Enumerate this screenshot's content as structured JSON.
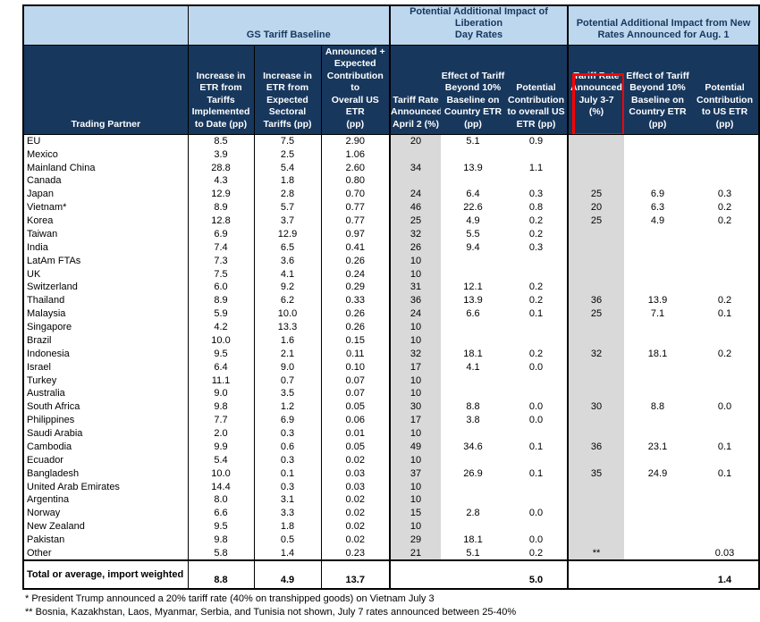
{
  "colors": {
    "header_navy": "#17375D",
    "band_blue": "#BDD7EE",
    "shaded_gray": "#D9D9D9",
    "highlight_red": "#FF0000",
    "text_black": "#000000"
  },
  "chart_data": {
    "type": "table",
    "row_header_label": "Trading Partner",
    "column_groups": {
      "corner": "",
      "gs_baseline": "GS Tariff Baseline",
      "liberation_day": "Potential Additional Impact of Liberation\nDay Rates",
      "aug1_rates": "Potential Additional Impact from New\nRates Announced for Aug. 1"
    },
    "columns": [
      "Trading Partner",
      "Increase in\nETR from\nTariffs\nImplemented\nto Date (pp)",
      "Increase in\nETR from\nExpected\nSectoral\nTariffs (pp)",
      "Announced +\nExpected\nContribution to\nOverall US ETR\n(pp)",
      "Tariff Rate\nAnnounced\nApril 2 (%)",
      "Effect of Tariff\nBeyond 10%\nBaseline on\nCountry ETR\n(pp)",
      "Potential\nContribution\nto overall US\nETR (pp)",
      "Tariff Rate\nAnnounced\nJuly 3-7\n(%)",
      "Effect of Tariff\nBeyond 10%\nBaseline on\nCountry ETR\n(pp)",
      "Potential\nContribution\nto US ETR\n(pp)"
    ],
    "highlight": {
      "note": "red box drawn around the 'Tariff Rate Announced July 3-7 (%)' column header"
    },
    "rows": [
      {
        "name": "EU",
        "values": [
          "8.5",
          "7.5",
          "2.90",
          "20",
          "5.1",
          "0.9",
          "",
          "",
          ""
        ]
      },
      {
        "name": "Mexico",
        "values": [
          "3.9",
          "2.5",
          "1.06",
          "",
          "",
          "",
          "",
          "",
          ""
        ]
      },
      {
        "name": "Mainland China",
        "values": [
          "28.8",
          "5.4",
          "2.60",
          "34",
          "13.9",
          "1.1",
          "",
          "",
          ""
        ]
      },
      {
        "name": "Canada",
        "values": [
          "4.3",
          "1.8",
          "0.80",
          "",
          "",
          "",
          "",
          "",
          ""
        ]
      },
      {
        "name": "Japan",
        "values": [
          "12.9",
          "2.8",
          "0.70",
          "24",
          "6.4",
          "0.3",
          "25",
          "6.9",
          "0.3"
        ]
      },
      {
        "name": "Vietnam*",
        "values": [
          "8.9",
          "5.7",
          "0.77",
          "46",
          "22.6",
          "0.8",
          "20",
          "6.3",
          "0.2"
        ]
      },
      {
        "name": "Korea",
        "values": [
          "12.8",
          "3.7",
          "0.77",
          "25",
          "4.9",
          "0.2",
          "25",
          "4.9",
          "0.2"
        ]
      },
      {
        "name": "Taiwan",
        "values": [
          "6.9",
          "12.9",
          "0.97",
          "32",
          "5.5",
          "0.2",
          "",
          "",
          ""
        ]
      },
      {
        "name": "India",
        "values": [
          "7.4",
          "6.5",
          "0.41",
          "26",
          "9.4",
          "0.3",
          "",
          "",
          ""
        ]
      },
      {
        "name": "LatAm FTAs",
        "values": [
          "7.3",
          "3.6",
          "0.26",
          "10",
          "",
          "",
          "",
          "",
          ""
        ]
      },
      {
        "name": "UK",
        "values": [
          "7.5",
          "4.1",
          "0.24",
          "10",
          "",
          "",
          "",
          "",
          ""
        ]
      },
      {
        "name": "Switzerland",
        "values": [
          "6.0",
          "9.2",
          "0.29",
          "31",
          "12.1",
          "0.2",
          "",
          "",
          ""
        ]
      },
      {
        "name": "Thailand",
        "values": [
          "8.9",
          "6.2",
          "0.33",
          "36",
          "13.9",
          "0.2",
          "36",
          "13.9",
          "0.2"
        ]
      },
      {
        "name": "Malaysia",
        "values": [
          "5.9",
          "10.0",
          "0.26",
          "24",
          "6.6",
          "0.1",
          "25",
          "7.1",
          "0.1"
        ]
      },
      {
        "name": "Singapore",
        "values": [
          "4.2",
          "13.3",
          "0.26",
          "10",
          "",
          "",
          "",
          "",
          ""
        ]
      },
      {
        "name": "Brazil",
        "values": [
          "10.0",
          "1.6",
          "0.15",
          "10",
          "",
          "",
          "",
          "",
          ""
        ]
      },
      {
        "name": "Indonesia",
        "values": [
          "9.5",
          "2.1",
          "0.11",
          "32",
          "18.1",
          "0.2",
          "32",
          "18.1",
          "0.2"
        ]
      },
      {
        "name": "Israel",
        "values": [
          "6.4",
          "9.0",
          "0.10",
          "17",
          "4.1",
          "0.0",
          "",
          "",
          ""
        ]
      },
      {
        "name": "Turkey",
        "values": [
          "11.1",
          "0.7",
          "0.07",
          "10",
          "",
          "",
          "",
          "",
          ""
        ]
      },
      {
        "name": "Australia",
        "values": [
          "9.0",
          "3.5",
          "0.07",
          "10",
          "",
          "",
          "",
          "",
          ""
        ]
      },
      {
        "name": "South Africa",
        "values": [
          "9.8",
          "1.2",
          "0.05",
          "30",
          "8.8",
          "0.0",
          "30",
          "8.8",
          "0.0"
        ]
      },
      {
        "name": "Philippines",
        "values": [
          "7.7",
          "6.9",
          "0.06",
          "17",
          "3.8",
          "0.0",
          "",
          "",
          ""
        ]
      },
      {
        "name": "Saudi Arabia",
        "values": [
          "2.0",
          "0.3",
          "0.01",
          "10",
          "",
          "",
          "",
          "",
          ""
        ]
      },
      {
        "name": "Cambodia",
        "values": [
          "9.9",
          "0.6",
          "0.05",
          "49",
          "34.6",
          "0.1",
          "36",
          "23.1",
          "0.1"
        ]
      },
      {
        "name": "Ecuador",
        "values": [
          "5.4",
          "0.3",
          "0.02",
          "10",
          "",
          "",
          "",
          "",
          ""
        ]
      },
      {
        "name": "Bangladesh",
        "values": [
          "10.0",
          "0.1",
          "0.03",
          "37",
          "26.9",
          "0.1",
          "35",
          "24.9",
          "0.1"
        ]
      },
      {
        "name": "United Arab Emirates",
        "values": [
          "14.4",
          "0.3",
          "0.03",
          "10",
          "",
          "",
          "",
          "",
          ""
        ]
      },
      {
        "name": "Argentina",
        "values": [
          "8.0",
          "3.1",
          "0.02",
          "10",
          "",
          "",
          "",
          "",
          ""
        ]
      },
      {
        "name": "Norway",
        "values": [
          "6.6",
          "3.3",
          "0.02",
          "15",
          "2.8",
          "0.0",
          "",
          "",
          ""
        ]
      },
      {
        "name": "New Zealand",
        "values": [
          "9.5",
          "1.8",
          "0.02",
          "10",
          "",
          "",
          "",
          "",
          ""
        ]
      },
      {
        "name": "Pakistan",
        "values": [
          "9.8",
          "0.5",
          "0.02",
          "29",
          "18.1",
          "0.0",
          "",
          "",
          ""
        ]
      },
      {
        "name": "Other",
        "values": [
          "5.8",
          "1.4",
          "0.23",
          "21",
          "5.1",
          "0.2",
          "**",
          "",
          "0.03"
        ]
      }
    ],
    "total_row": {
      "label": "Total or average, import weighted",
      "values": [
        "8.8",
        "4.9",
        "13.7",
        "",
        "",
        "5.0",
        "",
        "",
        "1.4"
      ]
    },
    "footnotes": [
      "* President Trump announced a 20% tariff rate (40% on transhipped goods) on Vietnam July 3",
      "** Bosnia, Kazakhstan, Laos, Myanmar, Serbia, and Tunisia not shown, July 7 rates announced between 25-40%"
    ]
  }
}
